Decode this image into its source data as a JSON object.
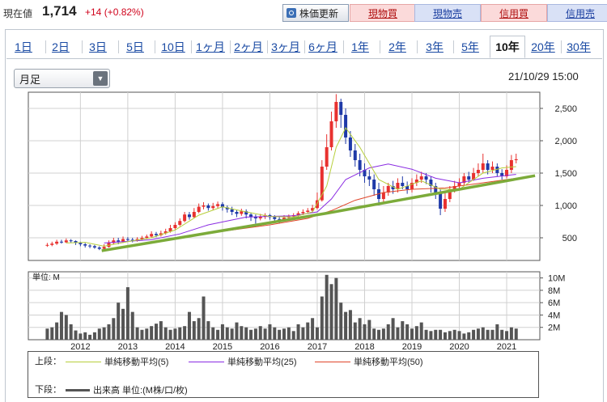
{
  "header": {
    "price_label": "現在値",
    "price": "1,714",
    "change": "+14 (+0.82%)",
    "refresh_label": "株価更新",
    "buttons": [
      {
        "label": "現物買",
        "color": "red"
      },
      {
        "label": "現物売",
        "color": "blue"
      },
      {
        "label": "信用買",
        "color": "red"
      },
      {
        "label": "信用売",
        "color": "blue"
      }
    ]
  },
  "tabs": [
    "1日",
    "2日",
    "3日",
    "5日",
    "10日",
    "1ヶ月",
    "2ヶ月",
    "3ヶ月",
    "6ヶ月",
    "1年",
    "2年",
    "3年",
    "5年",
    "10年",
    "20年",
    "30年"
  ],
  "active_tab": "10年",
  "period_select": {
    "value": "月足"
  },
  "timestamp": "21/10/29 15:00",
  "colors": {
    "up": "#e8312f",
    "down": "#1f3aa8",
    "ma5": "#b7cf3c",
    "ma25": "#8a2be2",
    "ma50": "#e0452a",
    "trend": "#7cab3a",
    "volume": "#555555"
  },
  "chart_data": [
    {
      "type": "candlestick",
      "title": "",
      "x_tick_labels": [
        "2012",
        "2013",
        "2014",
        "2015",
        "2016",
        "2017",
        "2018",
        "2019",
        "2020",
        "2021"
      ],
      "y_tick_labels": [
        "500",
        "1,000",
        "1,500",
        "2,000",
        "2,500"
      ],
      "ylim": [
        150,
        2750
      ],
      "grid": true,
      "candles": [
        [
          2011.8,
          390,
          390,
          420,
          360
        ],
        [
          2011.9,
          390,
          410,
          440,
          370
        ],
        [
          2012.0,
          410,
          440,
          470,
          390
        ],
        [
          2012.1,
          440,
          430,
          470,
          410
        ],
        [
          2012.2,
          430,
          460,
          490,
          420
        ],
        [
          2012.3,
          460,
          450,
          480,
          420
        ],
        [
          2012.4,
          450,
          420,
          460,
          390
        ],
        [
          2012.5,
          420,
          400,
          440,
          370
        ],
        [
          2012.6,
          400,
          380,
          420,
          350
        ],
        [
          2012.7,
          380,
          370,
          400,
          340
        ],
        [
          2012.8,
          370,
          350,
          390,
          330
        ],
        [
          2012.9,
          350,
          330,
          370,
          310
        ],
        [
          2013.0,
          330,
          360,
          400,
          320
        ],
        [
          2013.1,
          360,
          420,
          460,
          350
        ],
        [
          2013.2,
          420,
          460,
          500,
          400
        ],
        [
          2013.3,
          460,
          440,
          500,
          400
        ],
        [
          2013.4,
          440,
          480,
          520,
          420
        ],
        [
          2013.5,
          480,
          470,
          510,
          440
        ],
        [
          2013.6,
          470,
          460,
          500,
          430
        ],
        [
          2013.7,
          460,
          480,
          510,
          440
        ],
        [
          2013.8,
          480,
          500,
          530,
          460
        ],
        [
          2013.9,
          500,
          520,
          550,
          480
        ],
        [
          2014.0,
          520,
          560,
          600,
          500
        ],
        [
          2014.1,
          560,
          540,
          590,
          510
        ],
        [
          2014.2,
          540,
          570,
          610,
          520
        ],
        [
          2014.3,
          570,
          600,
          640,
          550
        ],
        [
          2014.4,
          600,
          650,
          700,
          580
        ],
        [
          2014.5,
          650,
          700,
          740,
          630
        ],
        [
          2014.6,
          700,
          760,
          800,
          680
        ],
        [
          2014.7,
          760,
          860,
          900,
          740
        ],
        [
          2014.8,
          860,
          820,
          900,
          780
        ],
        [
          2014.9,
          820,
          900,
          960,
          800
        ],
        [
          2015.0,
          900,
          980,
          1030,
          880
        ],
        [
          2015.1,
          980,
          1000,
          1050,
          940
        ],
        [
          2015.2,
          1000,
          960,
          1030,
          920
        ],
        [
          2015.3,
          960,
          990,
          1040,
          930
        ],
        [
          2015.4,
          990,
          1020,
          1060,
          950
        ],
        [
          2015.5,
          1020,
          970,
          1050,
          920
        ],
        [
          2015.6,
          970,
          940,
          1000,
          890
        ],
        [
          2015.7,
          940,
          900,
          980,
          850
        ],
        [
          2015.8,
          900,
          870,
          930,
          820
        ],
        [
          2015.9,
          870,
          910,
          950,
          840
        ],
        [
          2016.0,
          910,
          860,
          940,
          800
        ],
        [
          2016.1,
          860,
          820,
          890,
          760
        ],
        [
          2016.2,
          820,
          800,
          860,
          720
        ],
        [
          2016.3,
          800,
          830,
          870,
          770
        ],
        [
          2016.4,
          830,
          850,
          880,
          790
        ],
        [
          2016.5,
          850,
          820,
          870,
          780
        ],
        [
          2016.6,
          820,
          790,
          850,
          740
        ],
        [
          2016.7,
          790,
          780,
          830,
          720
        ],
        [
          2016.8,
          780,
          810,
          850,
          760
        ],
        [
          2016.9,
          810,
          830,
          860,
          780
        ],
        [
          2017.0,
          830,
          850,
          880,
          800
        ],
        [
          2017.1,
          850,
          880,
          910,
          820
        ],
        [
          2017.2,
          880,
          900,
          940,
          850
        ],
        [
          2017.3,
          900,
          920,
          960,
          870
        ],
        [
          2017.4,
          920,
          960,
          1010,
          890
        ],
        [
          2017.5,
          960,
          1080,
          1200,
          940
        ],
        [
          2017.6,
          1080,
          1600,
          1700,
          1060
        ],
        [
          2017.7,
          1600,
          1900,
          2100,
          1550
        ],
        [
          2017.8,
          1900,
          2300,
          2450,
          1850
        ],
        [
          2017.9,
          2300,
          2600,
          2720,
          2200
        ],
        [
          2018.0,
          2600,
          2400,
          2650,
          2200
        ],
        [
          2018.1,
          2400,
          2050,
          2500,
          1950
        ],
        [
          2018.2,
          2050,
          1850,
          2150,
          1750
        ],
        [
          2018.3,
          1850,
          1700,
          1950,
          1600
        ],
        [
          2018.4,
          1700,
          1550,
          1800,
          1450
        ],
        [
          2018.5,
          1550,
          1450,
          1650,
          1350
        ],
        [
          2018.6,
          1450,
          1400,
          1550,
          1300
        ],
        [
          2018.7,
          1400,
          1250,
          1480,
          1150
        ],
        [
          2018.8,
          1250,
          1100,
          1350,
          1000
        ],
        [
          2018.9,
          1100,
          1200,
          1300,
          1050
        ],
        [
          2019.0,
          1200,
          1300,
          1350,
          1150
        ],
        [
          2019.1,
          1300,
          1250,
          1380,
          1180
        ],
        [
          2019.2,
          1250,
          1350,
          1420,
          1200
        ],
        [
          2019.3,
          1350,
          1300,
          1450,
          1250
        ],
        [
          2019.4,
          1300,
          1250,
          1370,
          1180
        ],
        [
          2019.5,
          1250,
          1350,
          1420,
          1200
        ],
        [
          2019.6,
          1350,
          1400,
          1480,
          1300
        ],
        [
          2019.7,
          1400,
          1450,
          1520,
          1350
        ],
        [
          2019.8,
          1450,
          1400,
          1500,
          1330
        ],
        [
          2019.9,
          1400,
          1300,
          1450,
          1200
        ],
        [
          2020.0,
          1300,
          1200,
          1350,
          1100
        ],
        [
          2020.1,
          1200,
          950,
          1250,
          850
        ],
        [
          2020.2,
          950,
          1100,
          1200,
          900
        ],
        [
          2020.3,
          1100,
          1250,
          1300,
          1050
        ],
        [
          2020.4,
          1250,
          1300,
          1380,
          1200
        ],
        [
          2020.5,
          1300,
          1350,
          1420,
          1250
        ],
        [
          2020.6,
          1350,
          1450,
          1500,
          1300
        ],
        [
          2020.7,
          1450,
          1400,
          1520,
          1350
        ],
        [
          2020.8,
          1400,
          1500,
          1580,
          1380
        ],
        [
          2020.9,
          1500,
          1550,
          1650,
          1450
        ],
        [
          2021.0,
          1550,
          1650,
          1800,
          1500
        ],
        [
          2021.1,
          1650,
          1550,
          1700,
          1480
        ],
        [
          2021.2,
          1550,
          1600,
          1680,
          1500
        ],
        [
          2021.3,
          1600,
          1500,
          1650,
          1450
        ],
        [
          2021.4,
          1500,
          1450,
          1560,
          1400
        ],
        [
          2021.5,
          1450,
          1550,
          1620,
          1420
        ],
        [
          2021.6,
          1550,
          1700,
          1780,
          1500
        ],
        [
          2021.7,
          1700,
          1714,
          1800,
          1650
        ]
      ],
      "ma5": [
        [
          2012.2,
          420
        ],
        [
          2012.6,
          430
        ],
        [
          2013.0,
          370
        ],
        [
          2013.5,
          440
        ],
        [
          2014.0,
          500
        ],
        [
          2014.5,
          620
        ],
        [
          2015.0,
          850
        ],
        [
          2015.5,
          980
        ],
        [
          2016.0,
          900
        ],
        [
          2016.5,
          830
        ],
        [
          2017.0,
          820
        ],
        [
          2017.4,
          900
        ],
        [
          2017.7,
          1300
        ],
        [
          2017.9,
          1900
        ],
        [
          2018.1,
          2200
        ],
        [
          2018.4,
          1900
        ],
        [
          2018.8,
          1400
        ],
        [
          2019.2,
          1250
        ],
        [
          2019.7,
          1380
        ],
        [
          2020.1,
          1250
        ],
        [
          2020.5,
          1250
        ],
        [
          2021.0,
          1500
        ],
        [
          2021.4,
          1580
        ],
        [
          2021.7,
          1600
        ]
      ],
      "ma25": [
        [
          2013.0,
          420
        ],
        [
          2014.0,
          470
        ],
        [
          2014.6,
          560
        ],
        [
          2015.2,
          700
        ],
        [
          2016.0,
          820
        ],
        [
          2017.0,
          840
        ],
        [
          2017.5,
          900
        ],
        [
          2017.8,
          1100
        ],
        [
          2018.1,
          1400
        ],
        [
          2018.6,
          1580
        ],
        [
          2019.0,
          1640
        ],
        [
          2019.5,
          1560
        ],
        [
          2020.0,
          1420
        ],
        [
          2020.5,
          1350
        ],
        [
          2021.0,
          1420
        ],
        [
          2021.7,
          1480
        ]
      ],
      "ma50": [
        [
          2014.5,
          480
        ],
        [
          2015.5,
          600
        ],
        [
          2016.5,
          700
        ],
        [
          2017.3,
          800
        ],
        [
          2017.8,
          920
        ],
        [
          2018.3,
          1080
        ],
        [
          2018.9,
          1200
        ],
        [
          2019.5,
          1250
        ],
        [
          2020.2,
          1270
        ],
        [
          2020.8,
          1330
        ],
        [
          2021.7,
          1420
        ]
      ],
      "trendline": [
        [
          2012.95,
          300
        ],
        [
          2017.7,
          880
        ],
        [
          2022.1,
          1460
        ]
      ]
    },
    {
      "type": "bar",
      "title": "",
      "ylabel": "単位: M",
      "y_tick_labels": [
        "2M",
        "4M",
        "6M",
        "8M",
        "10M"
      ],
      "ylim": [
        0,
        11
      ],
      "x": [
        2011.8,
        2011.9,
        2012.0,
        2012.1,
        2012.2,
        2012.3,
        2012.4,
        2012.5,
        2012.6,
        2012.7,
        2012.8,
        2012.9,
        2013.0,
        2013.1,
        2013.2,
        2013.3,
        2013.4,
        2013.5,
        2013.6,
        2013.7,
        2013.8,
        2013.9,
        2014.0,
        2014.1,
        2014.2,
        2014.3,
        2014.4,
        2014.5,
        2014.6,
        2014.7,
        2014.8,
        2014.9,
        2015.0,
        2015.1,
        2015.2,
        2015.3,
        2015.4,
        2015.5,
        2015.6,
        2015.7,
        2015.8,
        2015.9,
        2016.0,
        2016.1,
        2016.2,
        2016.3,
        2016.4,
        2016.5,
        2016.6,
        2016.7,
        2016.8,
        2016.9,
        2017.0,
        2017.1,
        2017.2,
        2017.3,
        2017.4,
        2017.5,
        2017.6,
        2017.7,
        2017.8,
        2017.9,
        2018.0,
        2018.1,
        2018.2,
        2018.3,
        2018.4,
        2018.5,
        2018.6,
        2018.7,
        2018.8,
        2018.9,
        2019.0,
        2019.1,
        2019.2,
        2019.3,
        2019.4,
        2019.5,
        2019.6,
        2019.7,
        2019.8,
        2019.9,
        2020.0,
        2020.1,
        2020.2,
        2020.3,
        2020.4,
        2020.5,
        2020.6,
        2020.7,
        2020.8,
        2020.9,
        2021.0,
        2021.1,
        2021.2,
        2021.3,
        2021.4,
        2021.5,
        2021.6,
        2021.7
      ],
      "values": [
        1.8,
        2.0,
        2.8,
        4.5,
        4.0,
        2.5,
        1.5,
        1.0,
        1.2,
        0.8,
        1.2,
        1.8,
        2.0,
        2.5,
        3.5,
        6.0,
        5.0,
        8.5,
        4.5,
        2.0,
        1.6,
        1.8,
        2.2,
        2.6,
        3.0,
        2.0,
        1.6,
        1.8,
        2.0,
        2.2,
        4.5,
        3.0,
        3.5,
        7.0,
        3.0,
        2.0,
        1.6,
        2.5,
        2.0,
        1.8,
        2.8,
        2.2,
        2.0,
        1.6,
        1.8,
        2.2,
        1.8,
        2.5,
        2.0,
        1.6,
        1.8,
        2.0,
        1.4,
        2.5,
        2.0,
        2.8,
        3.5,
        2.0,
        7.0,
        10.5,
        9.0,
        10.0,
        6.0,
        4.5,
        4.8,
        2.8,
        3.5,
        2.5,
        3.2,
        1.8,
        1.6,
        1.8,
        2.5,
        3.5,
        2.0,
        3.0,
        2.5,
        1.8,
        2.2,
        2.8,
        1.6,
        1.4,
        1.6,
        1.6,
        1.2,
        1.4,
        1.6,
        1.4,
        1.0,
        1.2,
        1.6,
        1.8,
        2.0,
        1.6,
        1.6,
        2.5,
        1.6,
        1.4,
        2.0,
        1.8
      ]
    }
  ],
  "legend": {
    "upper_label": "上段：",
    "lower_label": "下段：",
    "items": [
      {
        "label": "単純移動平均(5)",
        "color": "#b7cf3c"
      },
      {
        "label": "単純移動平均(25)",
        "color": "#8a2be2"
      },
      {
        "label": "単純移動平均(50)",
        "color": "#e0452a"
      }
    ],
    "volume_label": "出来高 単位:(M株/口/枚)"
  }
}
